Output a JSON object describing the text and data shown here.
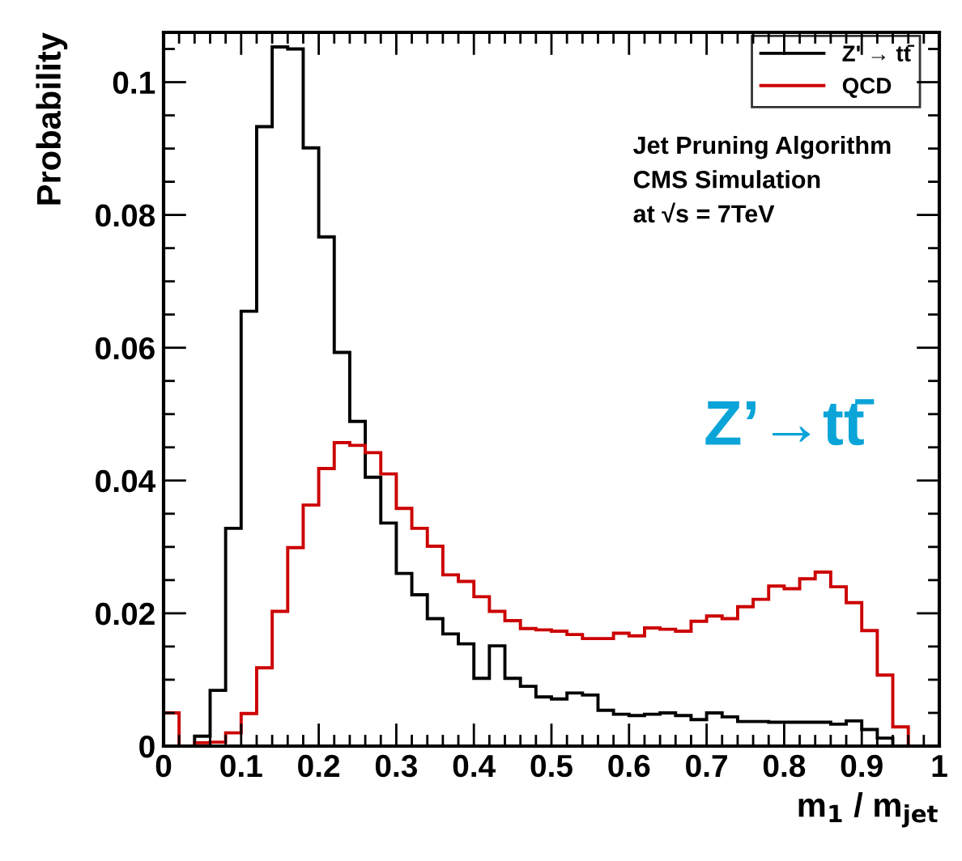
{
  "chart_data": {
    "type": "histogram",
    "ylabel": "Probability",
    "xlabel": "m$_{1}$ / m$_{jet}$",
    "bins": [
      0,
      0.02,
      0.04,
      0.06,
      0.08,
      0.1,
      0.12,
      0.14,
      0.16,
      0.18,
      0.2,
      0.22,
      0.24,
      0.26,
      0.28,
      0.3,
      0.32,
      0.34,
      0.36,
      0.38,
      0.4,
      0.42,
      0.44,
      0.46,
      0.48,
      0.5,
      0.52,
      0.54,
      0.56,
      0.58,
      0.6,
      0.62,
      0.64,
      0.66,
      0.68,
      0.7,
      0.72,
      0.74,
      0.76,
      0.78,
      0.8,
      0.82,
      0.84,
      0.86,
      0.88,
      0.9,
      0.92,
      0.94,
      0.96,
      0.98,
      1
    ],
    "series": [
      {
        "name": "Z' → tt̄",
        "color": "#000000",
        "values": [
          0,
          0,
          0.0015,
          0.0084,
          0.0328,
          0.0655,
          0.0933,
          0.1053,
          0.105,
          0.0901,
          0.0767,
          0.0593,
          0.0489,
          0.0405,
          0.0336,
          0.026,
          0.0228,
          0.0192,
          0.0169,
          0.0154,
          0.0102,
          0.0151,
          0.0102,
          0.009,
          0.0074,
          0.0071,
          0.008,
          0.0077,
          0.0054,
          0.0048,
          0.0046,
          0.0048,
          0.005,
          0.0046,
          0.004,
          0.005,
          0.0044,
          0.0037,
          0.0037,
          0.0036,
          0.0036,
          0.0036,
          0.0036,
          0.0033,
          0.0038,
          0.0025,
          0.0012,
          0,
          0,
          0
        ]
      },
      {
        "name": "QCD",
        "color": "#cc0000",
        "values": [
          0.005,
          0,
          0.0005,
          0.0006,
          0.002,
          0.0049,
          0.0118,
          0.0203,
          0.0299,
          0.0363,
          0.0418,
          0.0457,
          0.0453,
          0.0442,
          0.041,
          0.0358,
          0.0328,
          0.0301,
          0.0258,
          0.0248,
          0.0225,
          0.0203,
          0.0189,
          0.0177,
          0.0175,
          0.0173,
          0.0168,
          0.0162,
          0.0162,
          0.017,
          0.0166,
          0.0178,
          0.0176,
          0.0173,
          0.0188,
          0.0196,
          0.0192,
          0.021,
          0.0221,
          0.0241,
          0.0237,
          0.0252,
          0.0262,
          0.024,
          0.0216,
          0.0174,
          0.0107,
          0.0029,
          0,
          0
        ]
      }
    ],
    "xlim": [
      0,
      1
    ],
    "xticks": [
      0,
      0.1,
      0.2,
      0.3,
      0.4,
      0.5,
      0.6,
      0.7,
      0.8,
      0.9,
      1
    ],
    "ylim": [
      0,
      0.1075
    ],
    "yticks": [
      0,
      0.02,
      0.04,
      0.06,
      0.08,
      0.1
    ],
    "legend": "top right",
    "annotations": [
      "Jet Pruning Algorithm",
      "CMS Simulation",
      "at √s = 7TeV",
      "Z’→tt̄"
    ]
  }
}
